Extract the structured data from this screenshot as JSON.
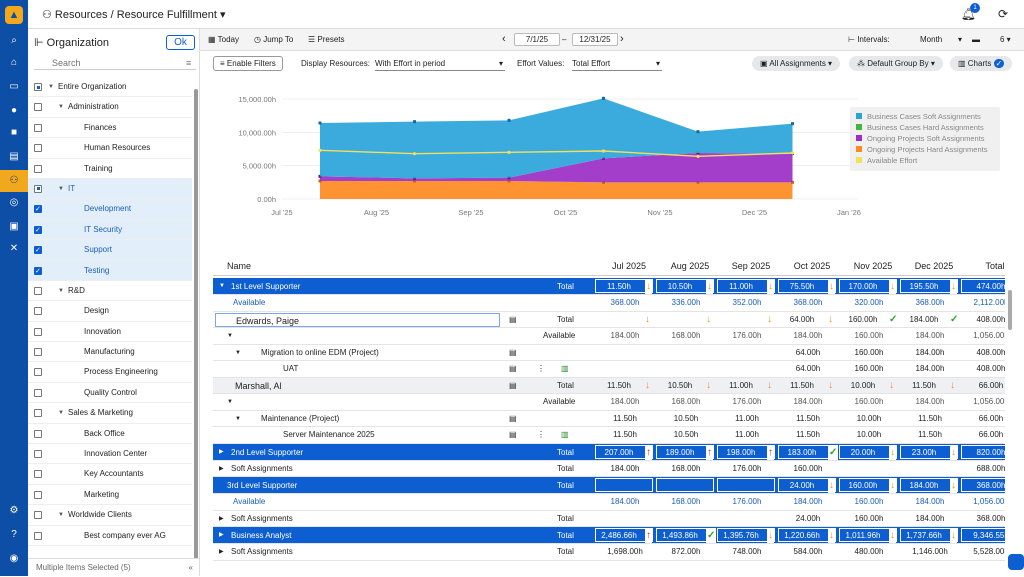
{
  "breadcrumb": {
    "section": "Resources",
    "sep": "/",
    "page": "Resource Fulfillment"
  },
  "notifications": {
    "count": "1"
  },
  "left": {
    "title": "Organization",
    "ok": "Ok",
    "search_placeholder": "Search",
    "footer": "Multiple Items Selected (5)",
    "tree": [
      {
        "label": "Entire Organization",
        "lvl": 0,
        "cb": "part",
        "tri": "▼"
      },
      {
        "label": "Administration",
        "lvl": 1,
        "cb": "off",
        "tri": "▼"
      },
      {
        "label": "Finances",
        "lvl": 2,
        "cb": "off"
      },
      {
        "label": "Human Resources",
        "lvl": 2,
        "cb": "off"
      },
      {
        "label": "Training",
        "lvl": 2,
        "cb": "off"
      },
      {
        "label": "IT",
        "lvl": 1,
        "cb": "part",
        "tri": "▼",
        "sel": true
      },
      {
        "label": "Development",
        "lvl": 2,
        "cb": "on",
        "sel": true
      },
      {
        "label": "IT Security",
        "lvl": 2,
        "cb": "on",
        "sel": true
      },
      {
        "label": "Support",
        "lvl": 2,
        "cb": "on",
        "sel": true
      },
      {
        "label": "Testing",
        "lvl": 2,
        "cb": "on",
        "sel": true
      },
      {
        "label": "R&D",
        "lvl": 1,
        "cb": "off",
        "tri": "▼"
      },
      {
        "label": "Design",
        "lvl": 2,
        "cb": "off"
      },
      {
        "label": "Innovation",
        "lvl": 2,
        "cb": "off"
      },
      {
        "label": "Manufacturing",
        "lvl": 2,
        "cb": "off"
      },
      {
        "label": "Process Engineering",
        "lvl": 2,
        "cb": "off"
      },
      {
        "label": "Quality Control",
        "lvl": 2,
        "cb": "off"
      },
      {
        "label": "Sales & Marketing",
        "lvl": 1,
        "cb": "off",
        "tri": "▼"
      },
      {
        "label": "Back Office",
        "lvl": 2,
        "cb": "off"
      },
      {
        "label": "Innovation Center",
        "lvl": 2,
        "cb": "off"
      },
      {
        "label": "Key Accountants",
        "lvl": 2,
        "cb": "off"
      },
      {
        "label": "Marketing",
        "lvl": 2,
        "cb": "off"
      },
      {
        "label": "Worldwide Clients",
        "lvl": 1,
        "cb": "off",
        "tri": "▼"
      },
      {
        "label": "Best company ever AG",
        "lvl": 2,
        "cb": "off"
      }
    ]
  },
  "toolbar": {
    "today": "Today",
    "jump": "Jump To",
    "presets": "Presets",
    "from": "7/1/25",
    "to": "12/31/25",
    "intervals_label": "Intervals:",
    "intervals": "Month",
    "count": "6"
  },
  "filters": {
    "enable": "Enable Filters",
    "display_label": "Display Resources:",
    "display": "With Effort in period",
    "effort_label": "Effort Values:",
    "effort": "Total Effort",
    "assignments": "All Assignments",
    "group": "Default Group By",
    "charts": "Charts"
  },
  "chart_data": {
    "type": "area",
    "x": [
      "Jul '25",
      "Aug '25",
      "Sep '25",
      "Oct '25",
      "Nov '25",
      "Dec '25"
    ],
    "x_ticks": [
      "Jul '25",
      "Aug '25",
      "Sep '25",
      "Oct '25",
      "Nov '25",
      "Dec '25",
      "Jan '26"
    ],
    "y_ticks": [
      "0.00h",
      "5,000.00h",
      "10,000.00h",
      "15,000.00h"
    ],
    "ylim": [
      0,
      15000
    ],
    "series": [
      {
        "name": "Business Cases Soft Assignments",
        "color": "#2aa3d9",
        "values": [
          8000,
          8500,
          8600,
          9000,
          3200,
          4500
        ]
      },
      {
        "name": "Business Cases Hard Assignments",
        "color": "#3db83d",
        "values": [
          0,
          0,
          0,
          0,
          0,
          0
        ]
      },
      {
        "name": "Ongoing Projects Soft Assignments",
        "color": "#9b2ec7",
        "values": [
          700,
          400,
          500,
          3600,
          4400,
          4300
        ]
      },
      {
        "name": "Ongoing Projects Hard Assignments",
        "color": "#ff8a1f",
        "values": [
          2700,
          2700,
          2700,
          2500,
          2500,
          2500
        ]
      }
    ],
    "available": {
      "name": "Available Effort",
      "color": "#f2e05a",
      "values": [
        7300,
        6800,
        7000,
        7200,
        6400,
        6900
      ]
    },
    "legend": "top-right"
  },
  "grid": {
    "headers": [
      "Name",
      "Jul 2025",
      "Aug 2025",
      "Sep 2025",
      "Oct 2025",
      "Nov 2025",
      "Dec 2025",
      "Total"
    ],
    "rows": [
      {
        "t": "blue",
        "name": "1st Level Supporter",
        "tri": "▼",
        "label": "Total",
        "v": [
          "11.50h",
          "10.50h",
          "11.00h",
          "75.50h",
          "170.00h",
          "195.50h",
          "474.00h"
        ],
        "arr": [
          "down",
          "down",
          "down",
          "down",
          "down",
          "down"
        ]
      },
      {
        "t": "avail",
        "name": "Available",
        "v": [
          "368.00h",
          "336.00h",
          "352.00h",
          "368.00h",
          "320.00h",
          "368.00h",
          "2,112.00h"
        ]
      },
      {
        "t": "person",
        "name": "Edwards, Paige",
        "label": "Total",
        "v": [
          "",
          "",
          "",
          "64.00h",
          "160.00h",
          "184.00h",
          "408.00h"
        ],
        "arr": [
          "down",
          "down",
          "down",
          "down",
          "ok",
          "ok"
        ]
      },
      {
        "t": "sub",
        "name": "",
        "tri": "▼",
        "label": "Available",
        "v": [
          "184.00h",
          "168.00h",
          "176.00h",
          "184.00h",
          "160.00h",
          "184.00h",
          "1,056.00h"
        ]
      },
      {
        "t": "sub",
        "name": "Migration to online EDM (Project)",
        "ind": 2,
        "tri": "▼",
        "v": [
          "",
          "",
          "",
          "64.00h",
          "160.00h",
          "184.00h",
          "408.00h"
        ]
      },
      {
        "t": "sub",
        "name": "UAT",
        "ind": 4,
        "v": [
          "",
          "",
          "",
          "64.00h",
          "160.00h",
          "184.00h",
          "408.00h"
        ]
      },
      {
        "t": "person2",
        "name": "Marshall, Al",
        "label": "Total",
        "v": [
          "11.50h",
          "10.50h",
          "11.00h",
          "11.50h",
          "10.00h",
          "11.50h",
          "66.00h"
        ],
        "arr": [
          "down",
          "down",
          "down",
          "down",
          "down",
          "down"
        ]
      },
      {
        "t": "sub",
        "name": "",
        "tri": "▼",
        "label": "Available",
        "v": [
          "184.00h",
          "168.00h",
          "176.00h",
          "184.00h",
          "160.00h",
          "184.00h",
          "1,056.00h"
        ]
      },
      {
        "t": "sub",
        "name": "Maintenance (Project)",
        "ind": 2,
        "tri": "▼",
        "v": [
          "11.50h",
          "10.50h",
          "11.00h",
          "11.50h",
          "10.00h",
          "11.50h",
          "66.00h"
        ]
      },
      {
        "t": "sub",
        "name": "Server Maintenance 2025",
        "ind": 4,
        "v": [
          "11.50h",
          "10.50h",
          "11.00h",
          "11.50h",
          "10.00h",
          "11.50h",
          "66.00h"
        ]
      },
      {
        "t": "blue",
        "name": "2nd Level Supporter",
        "tri": "▶",
        "label": "Total",
        "v": [
          "207.00h",
          "189.00h",
          "198.00h",
          "183.00h",
          "20.00h",
          "23.00h",
          "820.00h"
        ],
        "arr": [
          "up",
          "up",
          "up",
          "ok",
          "down",
          "down"
        ]
      },
      {
        "t": "plain",
        "name": "Soft Assignments",
        "tri": "▶",
        "label": "Total",
        "v": [
          "184.00h",
          "168.00h",
          "176.00h",
          "160.00h",
          "",
          "",
          "688.00h"
        ]
      },
      {
        "t": "blue",
        "name": "3rd Level Supporter",
        "label": "Total",
        "v": [
          "",
          "",
          "",
          "24.00h",
          "160.00h",
          "184.00h",
          "368.00h"
        ],
        "arr": [
          "",
          "",
          "",
          "down",
          "down",
          "down"
        ]
      },
      {
        "t": "avail",
        "name": "Available",
        "v": [
          "184.00h",
          "168.00h",
          "176.00h",
          "184.00h",
          "160.00h",
          "184.00h",
          "1,056.00h"
        ]
      },
      {
        "t": "plain",
        "name": "Soft Assignments",
        "tri": "▶",
        "label": "Total",
        "v": [
          "",
          "",
          "",
          "24.00h",
          "160.00h",
          "184.00h",
          "368.00h"
        ]
      },
      {
        "t": "blue",
        "name": "Business Analyst",
        "tri": "▶",
        "label": "Total",
        "v": [
          "2,486.66h",
          "1,493.86h",
          "1,395.76h",
          "1,220.66h",
          "1,011.96h",
          "1,737.66h",
          "9,346.55h"
        ],
        "arr": [
          "up",
          "ok",
          "down",
          "down",
          "down",
          "down"
        ]
      },
      {
        "t": "plain",
        "name": "Soft Assignments",
        "tri": "▶",
        "label": "Total",
        "v": [
          "1,698.00h",
          "872.00h",
          "748.00h",
          "584.00h",
          "480.00h",
          "1,146.00h",
          "5,528.00h"
        ]
      }
    ]
  }
}
